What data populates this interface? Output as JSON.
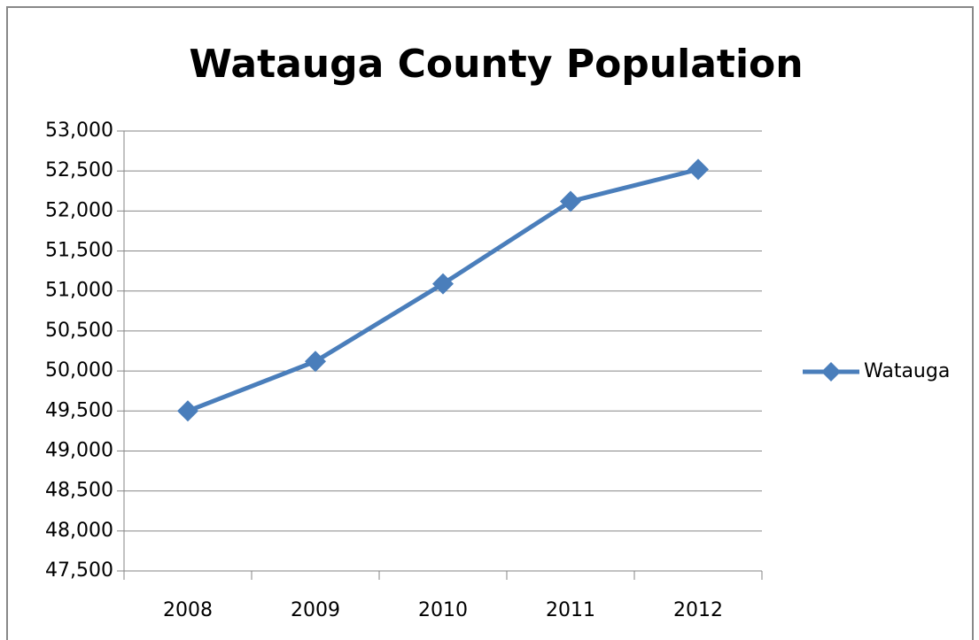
{
  "chart_data": {
    "type": "line",
    "title": "Watauga County Population",
    "categories": [
      "2008",
      "2009",
      "2010",
      "2011",
      "2012"
    ],
    "series": [
      {
        "name": "Watauga",
        "color": "#4a7ebb",
        "values": [
          49500,
          50120,
          51090,
          52120,
          52520
        ]
      }
    ],
    "ylim": [
      47500,
      53000
    ],
    "yticks": [
      {
        "value": 47500,
        "label": "47,500"
      },
      {
        "value": 48000,
        "label": "48,000"
      },
      {
        "value": 48500,
        "label": "48,500"
      },
      {
        "value": 49000,
        "label": "49,000"
      },
      {
        "value": 49500,
        "label": "49,500"
      },
      {
        "value": 50000,
        "label": "50,000"
      },
      {
        "value": 50500,
        "label": "50,500"
      },
      {
        "value": 51000,
        "label": "51,000"
      },
      {
        "value": 51500,
        "label": "51,500"
      },
      {
        "value": 52000,
        "label": "52,000"
      },
      {
        "value": 52500,
        "label": "52,500"
      },
      {
        "value": 53000,
        "label": "53,000"
      }
    ],
    "grid": true,
    "legend": "right"
  }
}
